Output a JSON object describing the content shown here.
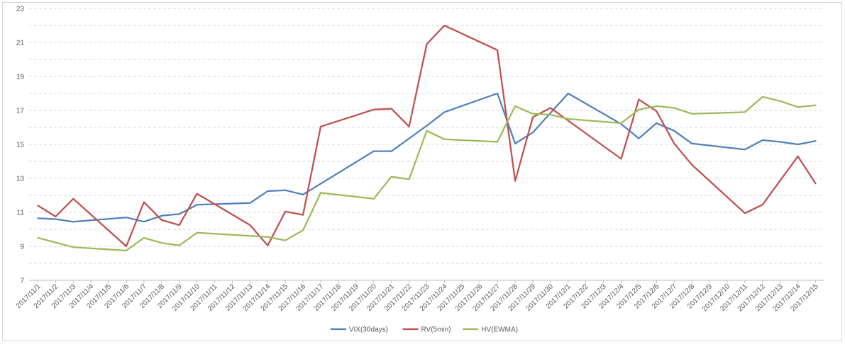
{
  "chart_data": {
    "type": "line",
    "title": "",
    "xlabel": "",
    "ylabel": "",
    "ylim": [
      7,
      23
    ],
    "yticks": [
      7,
      9,
      11,
      13,
      15,
      17,
      19,
      21,
      23
    ],
    "grid": "horizontal dashed",
    "legend_position": "bottom",
    "categories": [
      "2017/11/1",
      "2017/11/2",
      "2017/11/3",
      "2017/11/4",
      "2017/11/5",
      "2017/11/6",
      "2017/11/7",
      "2017/11/8",
      "2017/11/9",
      "2017/11/10",
      "2017/11/11",
      "2017/11/12",
      "2017/11/13",
      "2017/11/14",
      "2017/11/15",
      "2017/11/16",
      "2017/11/17",
      "2017/11/18",
      "2017/11/19",
      "2017/11/20",
      "2017/11/21",
      "2017/11/22",
      "2017/11/23",
      "2017/11/24",
      "2017/11/25",
      "2017/11/26",
      "2017/11/27",
      "2017/11/28",
      "2017/11/29",
      "2017/11/30",
      "2017/12/1",
      "2017/12/2",
      "2017/12/3",
      "2017/12/4",
      "2017/12/5",
      "2017/12/6",
      "2017/12/7",
      "2017/12/8",
      "2017/12/9",
      "2017/12/10",
      "2017/12/11",
      "2017/12/12",
      "2017/12/13",
      "2017/12/14",
      "2017/12/15"
    ],
    "series": [
      {
        "name": "VIX(30days)",
        "color": "#4f81bd",
        "points": [
          [
            "2017/11/1",
            10.65
          ],
          [
            "2017/11/2",
            10.6
          ],
          [
            "2017/11/3",
            10.45
          ],
          [
            "2017/11/6",
            10.7
          ],
          [
            "2017/11/7",
            10.45
          ],
          [
            "2017/11/8",
            10.8
          ],
          [
            "2017/11/9",
            10.9
          ],
          [
            "2017/11/10",
            11.45
          ],
          [
            "2017/11/13",
            11.55
          ],
          [
            "2017/11/14",
            12.25
          ],
          [
            "2017/11/15",
            12.3
          ],
          [
            "2017/11/16",
            12.05
          ],
          [
            "2017/11/20",
            14.6
          ],
          [
            "2017/11/21",
            14.6
          ],
          [
            "2017/11/22",
            15.35
          ],
          [
            "2017/11/23",
            16.1
          ],
          [
            "2017/11/24",
            16.9
          ],
          [
            "2017/11/27",
            18.0
          ],
          [
            "2017/11/28",
            15.05
          ],
          [
            "2017/11/29",
            15.7
          ],
          [
            "2017/12/1",
            18.0
          ],
          [
            "2017/12/4",
            16.2
          ],
          [
            "2017/12/5",
            15.35
          ],
          [
            "2017/12/6",
            16.25
          ],
          [
            "2017/12/7",
            15.8
          ],
          [
            "2017/12/8",
            15.05
          ],
          [
            "2017/12/11",
            14.7
          ],
          [
            "2017/12/12",
            15.25
          ],
          [
            "2017/12/13",
            15.15
          ],
          [
            "2017/12/14",
            15.0
          ],
          [
            "2017/12/15",
            15.2
          ]
        ]
      },
      {
        "name": "RV(5min)",
        "color": "#c0504d",
        "points": [
          [
            "2017/11/1",
            11.4
          ],
          [
            "2017/11/2",
            10.75
          ],
          [
            "2017/11/3",
            11.8
          ],
          [
            "2017/11/6",
            9.0
          ],
          [
            "2017/11/7",
            11.6
          ],
          [
            "2017/11/8",
            10.55
          ],
          [
            "2017/11/9",
            10.25
          ],
          [
            "2017/11/10",
            12.1
          ],
          [
            "2017/11/13",
            10.25
          ],
          [
            "2017/11/14",
            9.05
          ],
          [
            "2017/11/15",
            11.05
          ],
          [
            "2017/11/16",
            10.85
          ],
          [
            "2017/11/17",
            16.05
          ],
          [
            "2017/11/20",
            17.05
          ],
          [
            "2017/11/21",
            17.1
          ],
          [
            "2017/11/22",
            16.05
          ],
          [
            "2017/11/23",
            20.9
          ],
          [
            "2017/11/24",
            22.0
          ],
          [
            "2017/11/27",
            20.55
          ],
          [
            "2017/11/28",
            12.85
          ],
          [
            "2017/11/29",
            16.6
          ],
          [
            "2017/11/30",
            17.15
          ],
          [
            "2017/12/4",
            14.15
          ],
          [
            "2017/12/5",
            17.65
          ],
          [
            "2017/12/6",
            16.95
          ],
          [
            "2017/12/7",
            15.05
          ],
          [
            "2017/12/8",
            13.8
          ],
          [
            "2017/12/11",
            10.95
          ],
          [
            "2017/12/12",
            11.45
          ],
          [
            "2017/12/14",
            14.3
          ],
          [
            "2017/12/15",
            12.7
          ]
        ]
      },
      {
        "name": "HV(EWMA)",
        "color": "#9bbb59",
        "points": [
          [
            "2017/11/1",
            9.5
          ],
          [
            "2017/11/3",
            8.95
          ],
          [
            "2017/11/6",
            8.75
          ],
          [
            "2017/11/7",
            9.5
          ],
          [
            "2017/11/8",
            9.2
          ],
          [
            "2017/11/9",
            9.05
          ],
          [
            "2017/11/10",
            9.8
          ],
          [
            "2017/11/14",
            9.55
          ],
          [
            "2017/11/15",
            9.35
          ],
          [
            "2017/11/16",
            9.95
          ],
          [
            "2017/11/17",
            12.15
          ],
          [
            "2017/11/20",
            11.8
          ],
          [
            "2017/11/21",
            13.1
          ],
          [
            "2017/11/22",
            12.95
          ],
          [
            "2017/11/23",
            15.8
          ],
          [
            "2017/11/24",
            15.3
          ],
          [
            "2017/11/27",
            15.15
          ],
          [
            "2017/11/28",
            17.25
          ],
          [
            "2017/11/29",
            16.8
          ],
          [
            "2017/11/30",
            16.75
          ],
          [
            "2017/12/1",
            16.5
          ],
          [
            "2017/12/4",
            16.25
          ],
          [
            "2017/12/5",
            17.05
          ],
          [
            "2017/12/6",
            17.25
          ],
          [
            "2017/12/7",
            17.15
          ],
          [
            "2017/12/8",
            16.8
          ],
          [
            "2017/12/11",
            16.9
          ],
          [
            "2017/12/12",
            17.8
          ],
          [
            "2017/12/13",
            17.55
          ],
          [
            "2017/12/14",
            17.2
          ],
          [
            "2017/12/15",
            17.3
          ]
        ]
      }
    ]
  }
}
